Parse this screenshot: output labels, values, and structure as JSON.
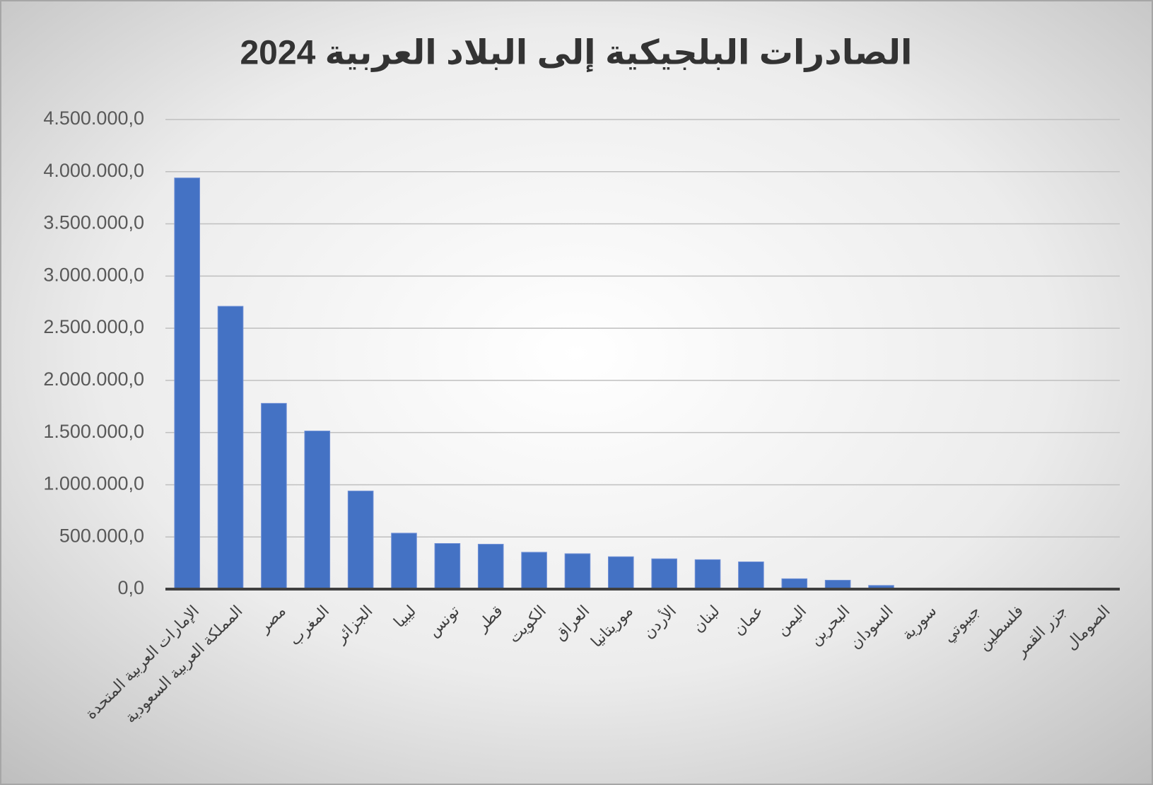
{
  "chart_data": {
    "type": "bar",
    "title": "الصادرات البلجيكية إلى البلاد العربية 2024",
    "categories": [
      "الإمارات العربية المتحدة",
      "المملكة العربية السعودية",
      "مصر",
      "المغرب",
      "الجزائر",
      "ليبيا",
      "تونس",
      "قطر",
      "الكويت",
      "العراق",
      "موريتانيا",
      "الأردن",
      "لبنان",
      "عمان",
      "اليمن",
      "البحرين",
      "السودان",
      "سورية",
      "جيبوتي",
      "فلسطين",
      "جزر القمر",
      "الصومال"
    ],
    "values": [
      3940000,
      2710000,
      1780000,
      1515000,
      940000,
      536000,
      437000,
      430000,
      353000,
      339000,
      310000,
      290000,
      282000,
      261000,
      99000,
      85000,
      35000,
      10000,
      5000,
      3000,
      2000,
      1000
    ],
    "color": "#4472c4",
    "ylim": [
      0,
      4500000
    ],
    "yticks": [
      {
        "value": 0,
        "label": "0,0"
      },
      {
        "value": 500000,
        "label": "500.000,0"
      },
      {
        "value": 1000000,
        "label": "1.000.000,0"
      },
      {
        "value": 1500000,
        "label": "1.500.000,0"
      },
      {
        "value": 2000000,
        "label": "2.000.000,0"
      },
      {
        "value": 2500000,
        "label": "2.500.000,0"
      },
      {
        "value": 3000000,
        "label": "3.000.000,0"
      },
      {
        "value": 3500000,
        "label": "3.500.000,0"
      },
      {
        "value": 4000000,
        "label": "4.000.000,0"
      },
      {
        "value": 4500000,
        "label": "4.500.000,0"
      }
    ],
    "grid": true
  }
}
